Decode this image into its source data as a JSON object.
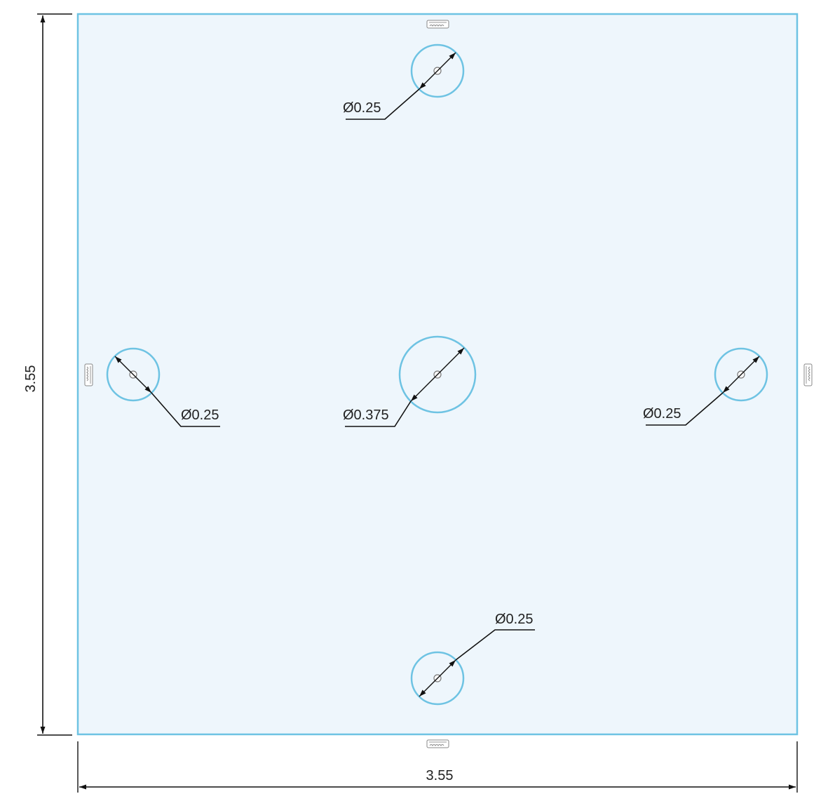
{
  "dimensions": {
    "height_label": "3.55",
    "width_label": "3.55"
  },
  "holes": {
    "top": {
      "callout": "Ø0.25"
    },
    "left": {
      "callout": "Ø0.25"
    },
    "center": {
      "callout": "Ø0.375"
    },
    "right": {
      "callout": "Ø0.25"
    },
    "bottom": {
      "callout": "Ø0.25"
    }
  },
  "colors": {
    "plate_fill": "#eef6fc",
    "plate_stroke": "#6ec3e3",
    "dimension_line": "#111111",
    "text": "#222222"
  },
  "icons": {
    "constraint_marker": "horizontal-constraint-icon"
  }
}
